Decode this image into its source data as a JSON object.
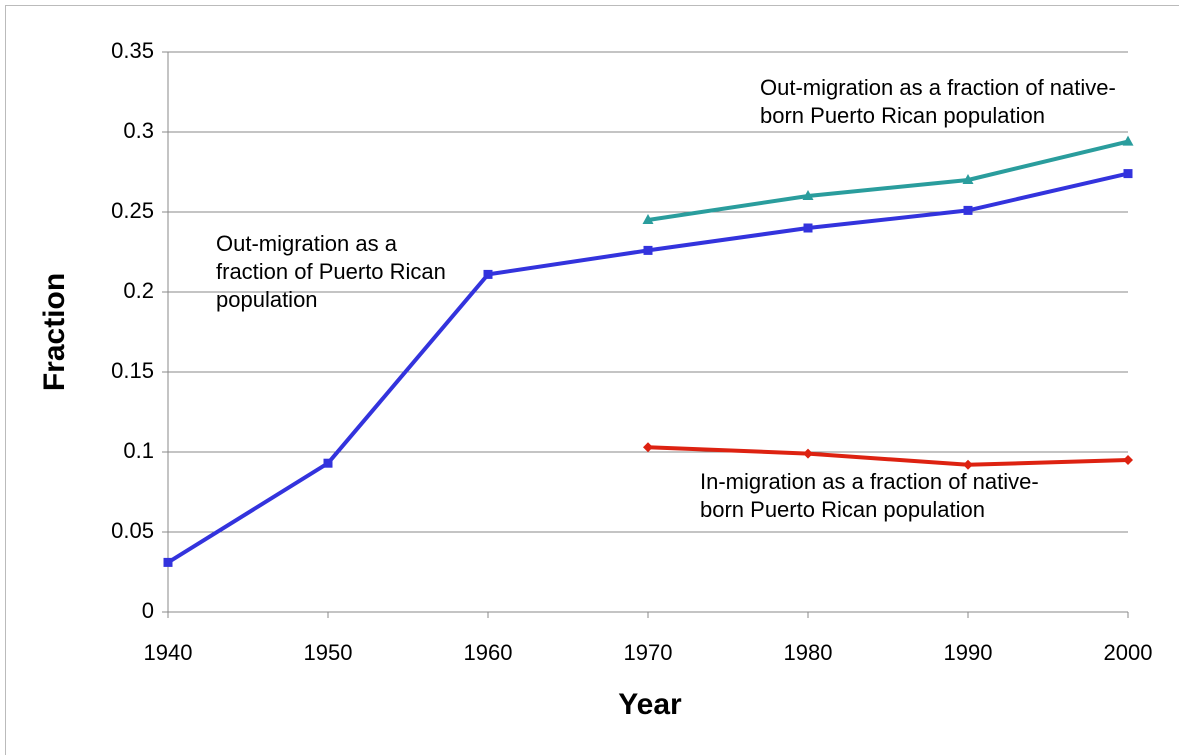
{
  "chart_data": {
    "type": "line",
    "x_label": "Year",
    "y_label": "Fraction",
    "x": [
      1940,
      1950,
      1960,
      1970,
      1980,
      1990,
      2000
    ],
    "xlim": [
      1940,
      2000
    ],
    "xticks": [
      1940,
      1950,
      1960,
      1970,
      1980,
      1990,
      2000
    ],
    "ylim": [
      0,
      0.35
    ],
    "yticks": [
      0,
      0.05,
      0.1,
      0.15,
      0.2,
      0.25,
      0.3,
      0.35
    ],
    "grid": true,
    "series": [
      {
        "name": "Out-migration as a fraction of Puerto Rican population",
        "color": "#3333dd",
        "marker": "square",
        "values": [
          0.031,
          0.093,
          0.211,
          0.226,
          0.24,
          0.251,
          0.274
        ]
      },
      {
        "name": "Out-migration as a fraction of native-born Puerto Rican population",
        "color": "#2a9d9d",
        "marker": "triangle",
        "values": [
          null,
          null,
          null,
          0.245,
          0.26,
          0.27,
          0.294
        ]
      },
      {
        "name": "In-migration as a fraction of native-born Puerto Rican population",
        "color": "#dd2211",
        "marker": "diamond",
        "values": [
          null,
          null,
          null,
          0.103,
          0.099,
          0.092,
          0.095
        ]
      }
    ]
  }
}
